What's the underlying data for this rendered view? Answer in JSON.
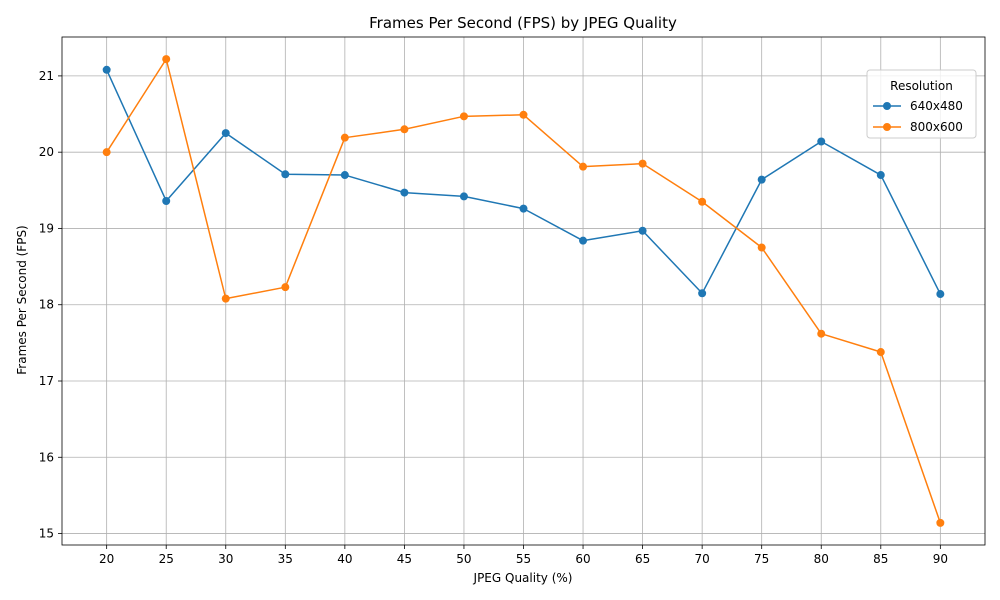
{
  "chart_data": {
    "type": "line",
    "title": "Frames Per Second (FPS) by JPEG Quality",
    "xlabel": "JPEG Quality (%)",
    "ylabel": "Frames Per Second (FPS)",
    "x": [
      20,
      25,
      30,
      35,
      40,
      45,
      50,
      55,
      60,
      65,
      70,
      75,
      80,
      85,
      90
    ],
    "xlim": [
      16.25,
      93.75
    ],
    "ylim": [
      14.85,
      21.51
    ],
    "yticks": [
      15,
      16,
      17,
      18,
      19,
      20,
      21
    ],
    "grid": true,
    "legend": {
      "title": "Resolution",
      "placement": "top-right"
    },
    "series": [
      {
        "name": "640x480",
        "color": "#1f77b4",
        "values": [
          21.08,
          19.36,
          20.25,
          19.71,
          19.7,
          19.47,
          19.42,
          19.26,
          18.84,
          18.97,
          18.15,
          19.64,
          20.14,
          19.7,
          18.14
        ]
      },
      {
        "name": "800x600",
        "color": "#ff7f0e",
        "values": [
          20.0,
          21.22,
          18.08,
          18.23,
          20.19,
          20.3,
          20.47,
          20.49,
          19.81,
          19.85,
          19.35,
          18.75,
          17.62,
          17.38,
          15.14
        ]
      }
    ]
  }
}
